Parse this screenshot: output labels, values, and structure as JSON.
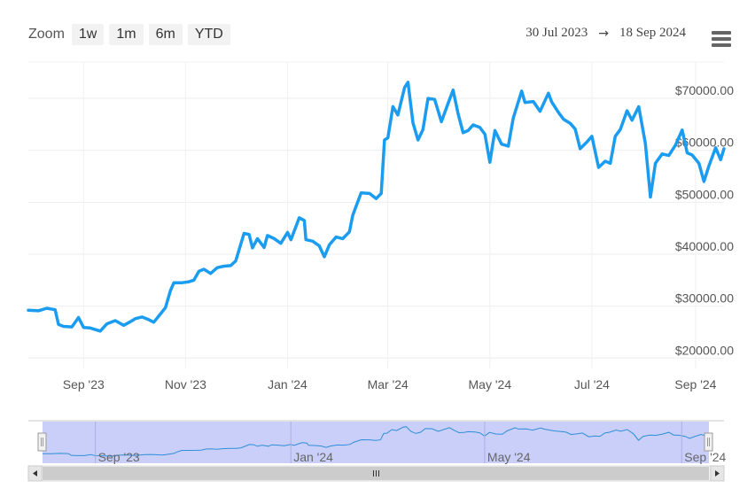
{
  "toolbar": {
    "zoom_label": "Zoom",
    "zoom_buttons": [
      "1w",
      "1m",
      "6m",
      "YTD"
    ],
    "range_from": "30 Jul 2023",
    "range_arrow": "→",
    "range_to": "18 Sep 2024",
    "menu_icon": "hamburger-menu-icon"
  },
  "colors": {
    "line": "#1a9cf0",
    "navigator_fill": "#c6ccf8",
    "navigator_line": "#2f8fd8"
  },
  "chart_data": {
    "type": "line",
    "title": "",
    "xlabel": "",
    "ylabel": "",
    "x_range": [
      "2023-07-30",
      "2024-09-18"
    ],
    "ylim": [
      18000,
      77000
    ],
    "y_ticks": [
      20000,
      30000,
      40000,
      50000,
      60000,
      70000
    ],
    "y_tick_labels": [
      "$20000.00",
      "$30000.00",
      "$40000.00",
      "$50000.00",
      "$60000.00",
      "$70000.00"
    ],
    "x_ticks": [
      "2023-09-01",
      "2023-11-01",
      "2024-01-01",
      "2024-03-01",
      "2024-05-01",
      "2024-07-01",
      "2024-09-01"
    ],
    "x_tick_labels": [
      "Sep '23",
      "Nov '23",
      "Jan '24",
      "Mar '24",
      "May '24",
      "Jul '24",
      "Sep '24"
    ],
    "grid": true,
    "series": [
      {
        "values": [
          [
            "2023-07-30",
            29200
          ],
          [
            "2023-08-05",
            29100
          ],
          [
            "2023-08-10",
            29600
          ],
          [
            "2023-08-15",
            29300
          ],
          [
            "2023-08-17",
            26500
          ],
          [
            "2023-08-20",
            26100
          ],
          [
            "2023-08-25",
            26000
          ],
          [
            "2023-08-29",
            27800
          ],
          [
            "2023-09-01",
            25900
          ],
          [
            "2023-09-05",
            25800
          ],
          [
            "2023-09-11",
            25200
          ],
          [
            "2023-09-15",
            26600
          ],
          [
            "2023-09-20",
            27200
          ],
          [
            "2023-09-25",
            26300
          ],
          [
            "2023-09-29",
            27000
          ],
          [
            "2023-10-02",
            27600
          ],
          [
            "2023-10-06",
            27900
          ],
          [
            "2023-10-10",
            27400
          ],
          [
            "2023-10-13",
            26900
          ],
          [
            "2023-10-17",
            28500
          ],
          [
            "2023-10-20",
            29700
          ],
          [
            "2023-10-23",
            33000
          ],
          [
            "2023-10-25",
            34500
          ],
          [
            "2023-10-30",
            34500
          ],
          [
            "2023-11-03",
            34700
          ],
          [
            "2023-11-06",
            35000
          ],
          [
            "2023-11-09",
            36700
          ],
          [
            "2023-11-12",
            37100
          ],
          [
            "2023-11-16",
            36300
          ],
          [
            "2023-11-20",
            37400
          ],
          [
            "2023-11-24",
            37700
          ],
          [
            "2023-11-28",
            37800
          ],
          [
            "2023-12-01",
            38700
          ],
          [
            "2023-12-04",
            41900
          ],
          [
            "2023-12-06",
            44000
          ],
          [
            "2023-12-09",
            43800
          ],
          [
            "2023-12-11",
            41200
          ],
          [
            "2023-12-14",
            43000
          ],
          [
            "2023-12-18",
            41300
          ],
          [
            "2023-12-20",
            43600
          ],
          [
            "2023-12-24",
            43000
          ],
          [
            "2023-12-28",
            42100
          ],
          [
            "2024-01-01",
            44200
          ],
          [
            "2024-01-03",
            42800
          ],
          [
            "2024-01-08",
            47000
          ],
          [
            "2024-01-11",
            46500
          ],
          [
            "2024-01-12",
            42800
          ],
          [
            "2024-01-16",
            42500
          ],
          [
            "2024-01-20",
            41600
          ],
          [
            "2024-01-23",
            39500
          ],
          [
            "2024-01-26",
            41800
          ],
          [
            "2024-01-30",
            43300
          ],
          [
            "2024-02-03",
            43000
          ],
          [
            "2024-02-07",
            44300
          ],
          [
            "2024-02-09",
            47500
          ],
          [
            "2024-02-14",
            51800
          ],
          [
            "2024-02-19",
            51700
          ],
          [
            "2024-02-23",
            50700
          ],
          [
            "2024-02-26",
            51700
          ],
          [
            "2024-02-28",
            62000
          ],
          [
            "2024-03-01",
            62400
          ],
          [
            "2024-03-04",
            68400
          ],
          [
            "2024-03-07",
            66800
          ],
          [
            "2024-03-11",
            72100
          ],
          [
            "2024-03-13",
            73100
          ],
          [
            "2024-03-16",
            65300
          ],
          [
            "2024-03-19",
            62000
          ],
          [
            "2024-03-22",
            64000
          ],
          [
            "2024-03-25",
            70000
          ],
          [
            "2024-03-29",
            69800
          ],
          [
            "2024-04-02",
            65500
          ],
          [
            "2024-04-06",
            69000
          ],
          [
            "2024-04-09",
            71600
          ],
          [
            "2024-04-12",
            67000
          ],
          [
            "2024-04-15",
            63400
          ],
          [
            "2024-04-18",
            63800
          ],
          [
            "2024-04-21",
            64900
          ],
          [
            "2024-04-25",
            64400
          ],
          [
            "2024-04-28",
            63100
          ],
          [
            "2024-05-01",
            57700
          ],
          [
            "2024-05-04",
            63800
          ],
          [
            "2024-05-08",
            61200
          ],
          [
            "2024-05-12",
            60800
          ],
          [
            "2024-05-15",
            66200
          ],
          [
            "2024-05-20",
            71400
          ],
          [
            "2024-05-22",
            69200
          ],
          [
            "2024-05-27",
            69400
          ],
          [
            "2024-05-31",
            67500
          ],
          [
            "2024-06-05",
            71000
          ],
          [
            "2024-06-07",
            69300
          ],
          [
            "2024-06-11",
            67300
          ],
          [
            "2024-06-14",
            66000
          ],
          [
            "2024-06-18",
            65200
          ],
          [
            "2024-06-21",
            64100
          ],
          [
            "2024-06-24",
            60300
          ],
          [
            "2024-06-28",
            61600
          ],
          [
            "2024-07-01",
            62700
          ],
          [
            "2024-07-05",
            56700
          ],
          [
            "2024-07-09",
            57900
          ],
          [
            "2024-07-12",
            57500
          ],
          [
            "2024-07-15",
            62700
          ],
          [
            "2024-07-18",
            64000
          ],
          [
            "2024-07-22",
            67600
          ],
          [
            "2024-07-25",
            65800
          ],
          [
            "2024-07-29",
            68400
          ],
          [
            "2024-08-02",
            61300
          ],
          [
            "2024-08-05",
            51000
          ],
          [
            "2024-08-08",
            57500
          ],
          [
            "2024-08-12",
            59300
          ],
          [
            "2024-08-16",
            59000
          ],
          [
            "2024-08-20",
            61000
          ],
          [
            "2024-08-24",
            63900
          ],
          [
            "2024-08-27",
            59500
          ],
          [
            "2024-08-30",
            59100
          ],
          [
            "2024-09-03",
            57500
          ],
          [
            "2024-09-06",
            54000
          ],
          [
            "2024-09-09",
            57000
          ],
          [
            "2024-09-13",
            60500
          ],
          [
            "2024-09-16",
            58200
          ],
          [
            "2024-09-18",
            60300
          ]
        ]
      }
    ],
    "navigator": {
      "x_tick_labels": [
        "Sep '23",
        "Jan '24",
        "May '24",
        "Sep '24"
      ],
      "x_ticks": [
        "2023-09-01",
        "2024-01-01",
        "2024-05-01",
        "2024-09-01"
      ]
    }
  }
}
